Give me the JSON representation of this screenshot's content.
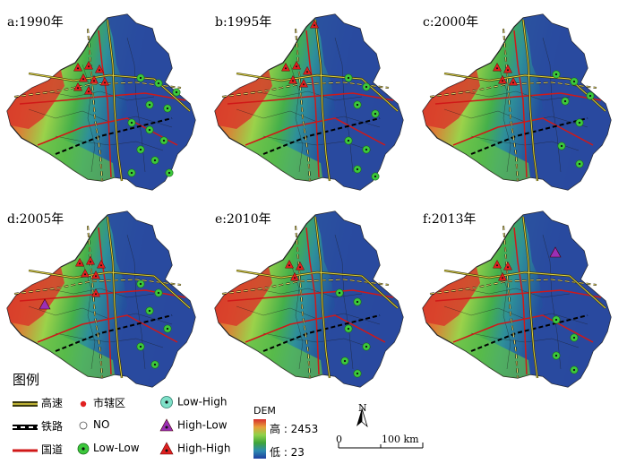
{
  "panels": [
    {
      "label": "a:1990年"
    },
    {
      "label": "b:1995年"
    },
    {
      "label": "c:2000年"
    },
    {
      "label": "d:2005年"
    },
    {
      "label": "e:2010年"
    },
    {
      "label": "f:2013年"
    }
  ],
  "legend": {
    "title": "图例",
    "road_items": [
      {
        "label": "高速",
        "symbol": "expressway-line-icon"
      },
      {
        "label": "铁路",
        "symbol": "railway-line-icon"
      },
      {
        "label": "国道",
        "symbol": "national-road-line-icon"
      }
    ],
    "point_items": [
      {
        "label": "市辖区",
        "symbol": "red-dot-icon"
      },
      {
        "label": "NO",
        "symbol": "hollow-circle-icon"
      },
      {
        "label": "Low-Low",
        "symbol": "green-dot-circle-icon"
      }
    ],
    "lisa_items": [
      {
        "label": "Low-High",
        "symbol": "cyan-circle-icon"
      },
      {
        "label": "High-Low",
        "symbol": "purple-triangle-icon"
      },
      {
        "label": "High-High",
        "symbol": "red-triangle-icon"
      }
    ]
  },
  "dem": {
    "title": "DEM",
    "high": "高 : 2453",
    "low": "低 : 23"
  },
  "scalebar": {
    "north": "N",
    "zero": "0",
    "distance": "100 km"
  },
  "colors": {
    "dem_high": "#d62e2e",
    "dem_mid": "#8fd24a",
    "dem_low": "#1f3fa0",
    "low_low": "#3cc83c",
    "high_high": "#e02020",
    "high_low": "#9b2fb5",
    "low_high": "#7fe0c8",
    "national_road": "#d01818"
  }
}
